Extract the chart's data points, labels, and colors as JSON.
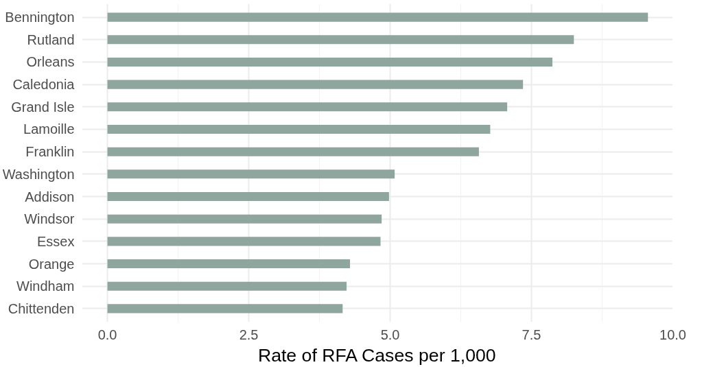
{
  "chart_data": {
    "type": "bar",
    "orientation": "horizontal",
    "xlabel": "Rate of RFA Cases per 1,000",
    "categories": [
      "Bennington",
      "Rutland",
      "Orleans",
      "Caledonia",
      "Grand Isle",
      "Lamoille",
      "Franklin",
      "Washington",
      "Addison",
      "Windsor",
      "Essex",
      "Orange",
      "Windham",
      "Chittenden"
    ],
    "values": [
      9.56,
      8.25,
      7.87,
      7.35,
      7.07,
      6.77,
      6.57,
      5.08,
      4.98,
      4.85,
      4.83,
      4.29,
      4.23,
      4.16
    ],
    "color": "#8fa69f",
    "xlim": [
      -0.45,
      10.0
    ],
    "xticks": [
      {
        "value": 0,
        "label": "0.0"
      },
      2.5,
      {
        "value": 5,
        "label": "5.0"
      },
      7.5,
      {
        "value": 10,
        "label": "10.0"
      }
    ],
    "grid": true
  }
}
